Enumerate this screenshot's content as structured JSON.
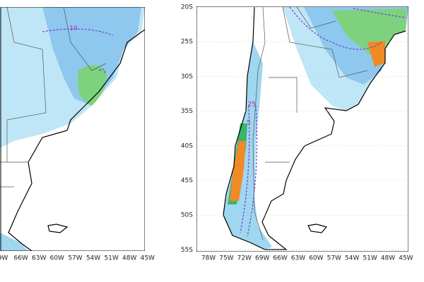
{
  "left_panel": {
    "xticks": [
      "9W",
      "66W",
      "63W",
      "60W",
      "57W",
      "54W",
      "51W",
      "48W",
      "45W"
    ],
    "contour_labels": [
      "10"
    ]
  },
  "right_panel": {
    "xticks": [
      "78W",
      "75W",
      "72W",
      "69W",
      "66W",
      "63W",
      "60W",
      "57W",
      "54W",
      "51W",
      "48W",
      "45W"
    ],
    "yticks": [
      "20S",
      "25S",
      "30S",
      "35S",
      "40S",
      "45S",
      "50S",
      "55S"
    ],
    "contour_labels": [
      "25",
      "5"
    ]
  }
}
